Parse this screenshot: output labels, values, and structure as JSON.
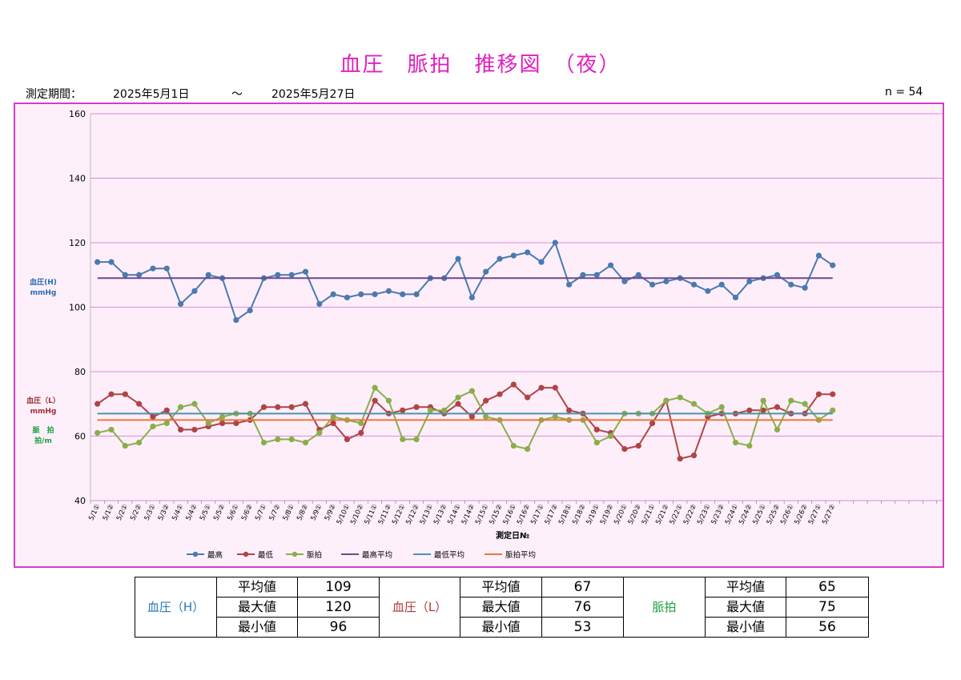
{
  "header": {
    "title": "血圧　脈拍　推移図　（夜）",
    "period_label": "測定期間：",
    "start_date": "2025年5月1日",
    "tilde": "～",
    "end_date": "2025年5月27日",
    "n_label": "n = 54"
  },
  "chart_data": {
    "type": "line",
    "xlabel": "測定日№",
    "ylabel_h": [
      "血圧(H)",
      "mmHg"
    ],
    "ylabel_l": [
      "血圧（L）",
      "mmHg"
    ],
    "ylabel_p": [
      "脈　拍",
      "拍/m"
    ],
    "ylim": [
      40,
      160
    ],
    "yticks": [
      40,
      60,
      80,
      100,
      120,
      140,
      160
    ],
    "grid": "horizontal",
    "legend_position": "bottom",
    "total_slots": 62,
    "categories": [
      "5/1①",
      "5/1②",
      "5/2①",
      "5/2②",
      "5/3①",
      "5/3②",
      "5/4①",
      "5/4②",
      "5/5①",
      "5/5②",
      "5/6①",
      "5/6②",
      "5/7①",
      "5/7②",
      "5/8①",
      "5/8②",
      "5/9①",
      "5/9②",
      "5/10①",
      "5/10②",
      "5/11①",
      "5/11②",
      "5/12①",
      "5/12②",
      "5/13①",
      "5/13②",
      "5/14①",
      "5/14②",
      "5/15①",
      "5/15②",
      "5/16①",
      "5/16②",
      "5/17①",
      "5/17②",
      "5/18①",
      "5/18②",
      "5/19①",
      "5/19②",
      "5/20①",
      "5/20②",
      "5/21①",
      "5/21②",
      "5/22①",
      "5/22②",
      "5/23①",
      "5/23②",
      "5/24①",
      "5/24②",
      "5/25①",
      "5/25②",
      "5/26①",
      "5/26②",
      "5/27①",
      "5/27②"
    ],
    "series": [
      {
        "name": "最高",
        "color": "#4a7ab0",
        "kind": "marker",
        "values": [
          114,
          114,
          110,
          110,
          112,
          112,
          101,
          105,
          110,
          109,
          96,
          99,
          109,
          110,
          110,
          111,
          101,
          104,
          103,
          104,
          104,
          105,
          104,
          104,
          109,
          109,
          115,
          103,
          111,
          115,
          116,
          117,
          114,
          120,
          107,
          110,
          110,
          113,
          108,
          110,
          107,
          108,
          109,
          107,
          105,
          107,
          103,
          108,
          109,
          110,
          107,
          106,
          116,
          113
        ]
      },
      {
        "name": "最低",
        "color": "#b04444",
        "kind": "marker",
        "values": [
          70,
          73,
          73,
          70,
          66,
          68,
          62,
          62,
          63,
          64,
          64,
          65,
          69,
          69,
          69,
          70,
          62,
          64,
          59,
          61,
          71,
          67,
          68,
          69,
          69,
          67,
          70,
          66,
          71,
          73,
          76,
          72,
          75,
          75,
          68,
          67,
          62,
          61,
          56,
          57,
          64,
          71,
          53,
          54,
          66,
          67,
          67,
          68,
          68,
          69,
          67,
          67,
          73,
          73
        ]
      },
      {
        "name": "脈拍",
        "color": "#8aae4a",
        "kind": "marker",
        "values": [
          61,
          62,
          57,
          58,
          63,
          64,
          69,
          70,
          64,
          66,
          67,
          67,
          58,
          59,
          59,
          58,
          61,
          66,
          65,
          64,
          75,
          71,
          59,
          59,
          68,
          68,
          72,
          74,
          66,
          65,
          57,
          56,
          65,
          66,
          65,
          65,
          58,
          60,
          67,
          67,
          67,
          71,
          72,
          70,
          67,
          69,
          58,
          57,
          71,
          62,
          71,
          70,
          65,
          68
        ]
      },
      {
        "name": "最高平均",
        "color": "#6a4a8a",
        "kind": "flat",
        "value": 109
      },
      {
        "name": "最低平均",
        "color": "#4a94b0",
        "kind": "flat",
        "value": 67
      },
      {
        "name": "脈拍平均",
        "color": "#e8783a",
        "kind": "flat",
        "value": 65
      }
    ]
  },
  "stats": {
    "row_labels": [
      "平均値",
      "最大値",
      "最小値"
    ],
    "groups": [
      {
        "label": "血圧（H）",
        "color": "#2a7ab8",
        "values": [
          "109",
          "120",
          "96"
        ]
      },
      {
        "label": "血圧（L）",
        "color": "#b03a3a",
        "values": [
          "67",
          "76",
          "53"
        ]
      },
      {
        "label": "脈拍",
        "color": "#20a040",
        "values": [
          "65",
          "75",
          "56"
        ]
      }
    ]
  }
}
